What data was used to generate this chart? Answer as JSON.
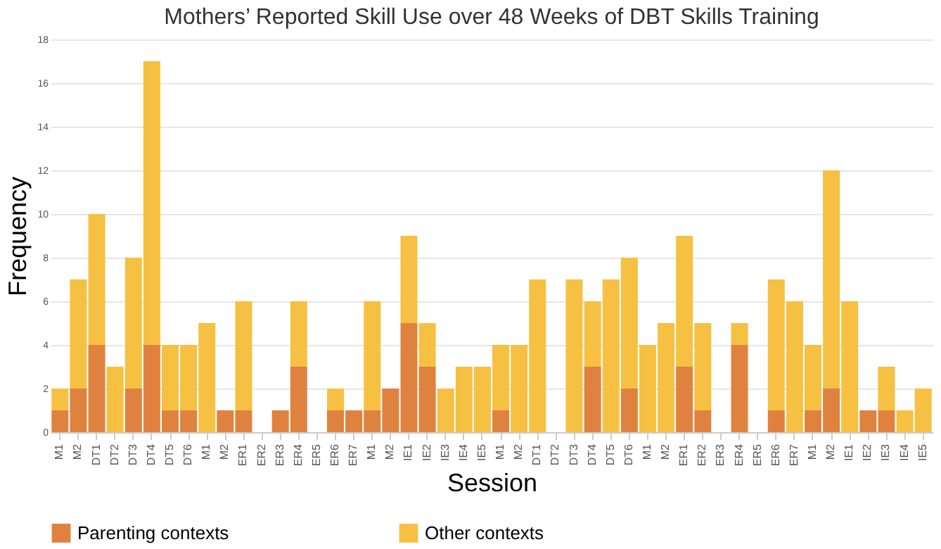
{
  "chart_data": {
    "type": "bar",
    "title": "Mothers’ Reported Skill Use over 48 Weeks of DBT Skills Training",
    "xlabel": "Session",
    "ylabel": "Frequency",
    "categories": [
      "M1",
      "M2",
      "DT1",
      "DT2",
      "DT3",
      "DT4",
      "DT5",
      "DT6",
      "M1",
      "M2",
      "ER1",
      "ER2",
      "ER3",
      "ER4",
      "ER5",
      "ER6",
      "ER7",
      "M1",
      "M2",
      "IE1",
      "IE2",
      "IE3",
      "IE4",
      "IE5",
      "M1",
      "M2",
      "DT1",
      "DT2",
      "DT3",
      "DT4",
      "DT5",
      "DT6",
      "M1",
      "M2",
      "ER1",
      "ER2",
      "ER3",
      "ER4",
      "ER5",
      "ER6",
      "ER7",
      "M1",
      "M2",
      "IE1",
      "IE2",
      "IE3",
      "IE4",
      "IE5"
    ],
    "series": [
      {
        "name": "Parenting contexts",
        "color": "#e0823f",
        "values": [
          1,
          2,
          4,
          0,
          2,
          4,
          1,
          1,
          0,
          1,
          1,
          0,
          1,
          3,
          0,
          1,
          1,
          1,
          2,
          5,
          3,
          0,
          0,
          0,
          1,
          0,
          0,
          0,
          0,
          3,
          0,
          2,
          0,
          0,
          3,
          1,
          0,
          4,
          0,
          1,
          0,
          1,
          2,
          0,
          1,
          1,
          0,
          0
        ]
      },
      {
        "name": "Other contexts",
        "color": "#f6c142",
        "values": [
          1,
          5,
          6,
          3,
          6,
          13,
          3,
          3,
          5,
          0,
          5,
          0,
          0,
          3,
          0,
          1,
          0,
          5,
          0,
          4,
          2,
          2,
          3,
          3,
          3,
          4,
          7,
          0,
          7,
          3,
          7,
          6,
          4,
          5,
          6,
          4,
          0,
          1,
          0,
          6,
          6,
          3,
          10,
          6,
          0,
          2,
          1,
          2
        ]
      }
    ],
    "stacked": true,
    "ylim": [
      0,
      18
    ],
    "yticks": [
      0,
      2,
      4,
      6,
      8,
      10,
      12,
      14,
      16,
      18
    ],
    "grid": "y",
    "legend": "bottom"
  }
}
